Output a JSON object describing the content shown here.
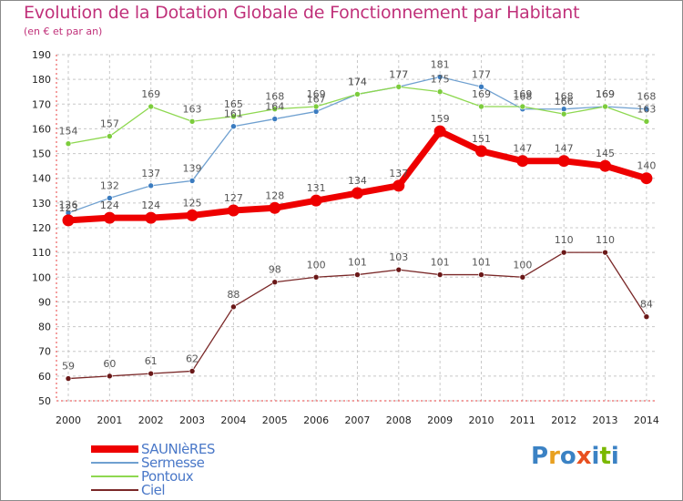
{
  "title": "Evolution de la Dotation Globale de Fonctionnement par Habitant",
  "subtitle": "(en € et par an)",
  "brand": "Proxiti",
  "brand_letters": [
    {
      "ch": "P",
      "color": "#3b82c4"
    },
    {
      "ch": "r",
      "color": "#e8a020"
    },
    {
      "ch": "o",
      "color": "#3b82c4"
    },
    {
      "ch": "x",
      "color": "#e85020"
    },
    {
      "ch": "i",
      "color": "#3b82c4"
    },
    {
      "ch": "t",
      "color": "#7ab800"
    },
    {
      "ch": "i",
      "color": "#3b82c4"
    }
  ],
  "chart_data": {
    "type": "line",
    "title": "Evolution de la Dotation Globale de Fonctionnement par Habitant",
    "subtitle": "(en € et par an)",
    "xlabel": "",
    "ylabel": "",
    "x": [
      "2000",
      "2001",
      "2002",
      "2003",
      "2004",
      "2005",
      "2006",
      "2007",
      "2008",
      "2009",
      "2010",
      "2011",
      "2012",
      "2013",
      "2014"
    ],
    "ylim": [
      50,
      190
    ],
    "yticks": [
      50,
      60,
      70,
      80,
      90,
      100,
      110,
      120,
      130,
      140,
      150,
      160,
      170,
      180,
      190
    ],
    "grid": true,
    "legend_position": "bottom-left",
    "series": [
      {
        "name": "SAUNIèRES",
        "color": "#ee0000",
        "marker": "#ee0000",
        "thick": true,
        "values": [
          123,
          124,
          124,
          125,
          127,
          128,
          131,
          134,
          137,
          159,
          151,
          147,
          147,
          145,
          140
        ],
        "labels": [
          "123",
          "124",
          "124",
          "125",
          "127",
          "128",
          "131",
          "134",
          "137",
          "159",
          "151",
          "147",
          "147",
          "145",
          "140"
        ]
      },
      {
        "name": "Sermesse",
        "color": "#6fa0d0",
        "marker": "#3b7cc0",
        "thick": false,
        "values": [
          126,
          132,
          137,
          139,
          161,
          164,
          167,
          174,
          177,
          181,
          177,
          168,
          168,
          169,
          168
        ],
        "labels": [
          "126",
          "132",
          "137",
          "139",
          "161",
          "164",
          "167",
          "174",
          "177",
          "181",
          "177",
          "168",
          "168",
          "169",
          "168"
        ]
      },
      {
        "name": "Pontoux",
        "color": "#8ed850",
        "marker": "#7ccc3c",
        "thick": false,
        "values": [
          154,
          157,
          169,
          163,
          165,
          168,
          169,
          174,
          177,
          175,
          169,
          169,
          166,
          169,
          163
        ],
        "labels": [
          "154",
          "157",
          "169",
          "163",
          "165",
          "168",
          "169",
          "174",
          "177",
          "175",
          "169",
          "169",
          "166",
          "169",
          "163"
        ]
      },
      {
        "name": "Ciel",
        "color": "#7a2828",
        "marker": "#6a1818",
        "thick": false,
        "values": [
          59,
          60,
          61,
          62,
          88,
          98,
          100,
          101,
          103,
          101,
          101,
          100,
          110,
          110,
          84
        ],
        "labels": [
          "59",
          "60",
          "61",
          "62",
          "88",
          "98",
          "100",
          "101",
          "103",
          "101",
          "101",
          "100",
          "110",
          "110",
          "84"
        ]
      }
    ]
  }
}
